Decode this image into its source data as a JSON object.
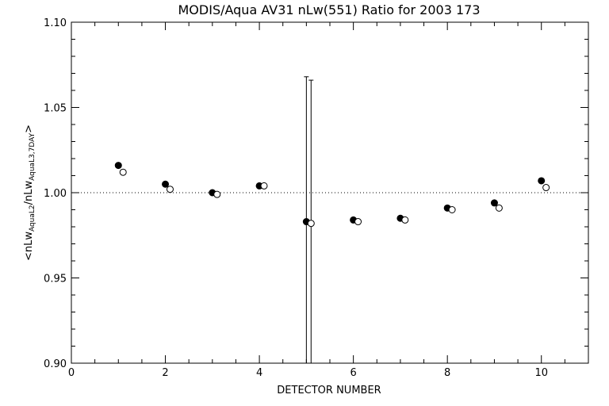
{
  "chart_data": {
    "type": "scatter",
    "title": "MODIS/Aqua AV31 nLw(551) Ratio for 2003 173",
    "xlabel": "DETECTOR NUMBER",
    "ylabel": {
      "prefix": "<nLw",
      "sub1": "AquaL2",
      "mid": "/nLw",
      "sub2": "AquaL3,7DAY",
      "suffix": ">"
    },
    "xlim": [
      0,
      11
    ],
    "ylim": [
      0.9,
      1.1
    ],
    "xticks": [
      0,
      2,
      4,
      6,
      8,
      10
    ],
    "xtick_labels": [
      "0",
      "2",
      "4",
      "6",
      "8",
      "10"
    ],
    "yticks": [
      0.9,
      0.95,
      1.0,
      1.05,
      1.1
    ],
    "ytick_labels": [
      "0.90",
      "0.95",
      "1.00",
      "1.05",
      "1.10"
    ],
    "reference_line": 1.0,
    "grid": false,
    "series": [
      {
        "marker": "filled-circle",
        "x": [
          1,
          2,
          3,
          4,
          5,
          6,
          7,
          8,
          9,
          10
        ],
        "y": [
          1.016,
          1.005,
          1.0,
          1.004,
          0.983,
          0.984,
          0.985,
          0.991,
          0.994,
          1.007
        ],
        "error_bars": [
          null,
          null,
          null,
          null,
          0.085,
          null,
          null,
          null,
          null,
          null
        ]
      },
      {
        "marker": "open-circle",
        "x": [
          1.1,
          2.1,
          3.1,
          4.1,
          5.1,
          6.1,
          7.1,
          8.1,
          9.1,
          10.1
        ],
        "y": [
          1.012,
          1.002,
          0.999,
          1.004,
          0.982,
          0.983,
          0.984,
          0.99,
          0.991,
          1.003
        ],
        "error_bars": [
          null,
          null,
          null,
          null,
          0.084,
          null,
          null,
          null,
          null,
          null
        ]
      }
    ]
  }
}
